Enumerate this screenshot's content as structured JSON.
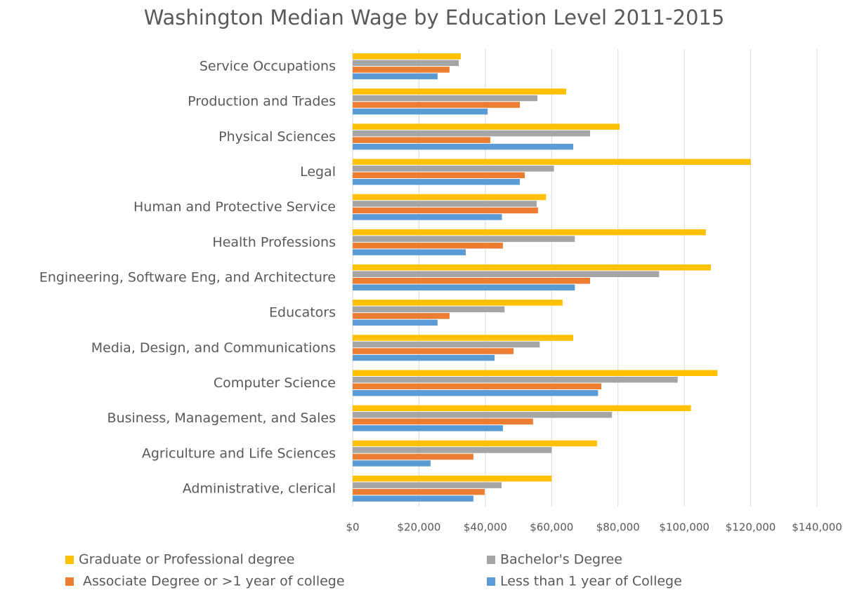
{
  "chart_data": {
    "type": "bar",
    "orientation": "horizontal",
    "title": "Washington Median Wage by Education Level 2011-2015",
    "categories": [
      "Service Occupations",
      "Production and Trades",
      "Physical Sciences",
      "Legal",
      "Human and Protective Service",
      "Health Professions",
      "Engineering, Software Eng, and Architecture",
      "Educators",
      "Media, Design, and Communications",
      "Computer Science",
      "Business, Management, and Sales",
      "Agriculture and Life Sciences",
      "Administrative, clerical"
    ],
    "series": [
      {
        "name": "Graduate or Professional degree",
        "color": "#ffc000",
        "values": [
          32600,
          64400,
          80500,
          120000,
          58300,
          106500,
          108000,
          63300,
          66500,
          110000,
          102000,
          73700,
          60000
        ]
      },
      {
        "name": "Bachelor's Degree",
        "color": "#a5a5a5",
        "values": [
          32000,
          55700,
          71600,
          60700,
          55500,
          67000,
          92400,
          45800,
          56400,
          98000,
          78200,
          60000,
          44900
        ]
      },
      {
        "name": "Associate Degree or >1 year of college",
        "color": "#ed7d31",
        "values": [
          29200,
          50400,
          41500,
          51900,
          55900,
          45300,
          71600,
          29200,
          48500,
          75000,
          54400,
          36400,
          39800
        ]
      },
      {
        "name": "Less than 1 year of College",
        "color": "#5b9bd5",
        "values": [
          25600,
          40700,
          66500,
          50400,
          45000,
          34100,
          67000,
          25600,
          42800,
          74000,
          45300,
          23500,
          36400
        ]
      }
    ],
    "xlim": [
      0,
      140000
    ],
    "xticks": [
      {
        "value": 0,
        "label": "$0"
      },
      {
        "value": 20000,
        "label": "$20,000"
      },
      {
        "value": 40000,
        "label": "$40,000"
      },
      {
        "value": 60000,
        "label": "$60,000"
      },
      {
        "value": 80000,
        "label": "$80,000"
      },
      {
        "value": 100000,
        "label": "$100,000"
      },
      {
        "value": 120000,
        "label": "$120,000"
      },
      {
        "value": 140000,
        "label": "$140,000"
      }
    ],
    "grid": true,
    "legend": "bottom"
  }
}
